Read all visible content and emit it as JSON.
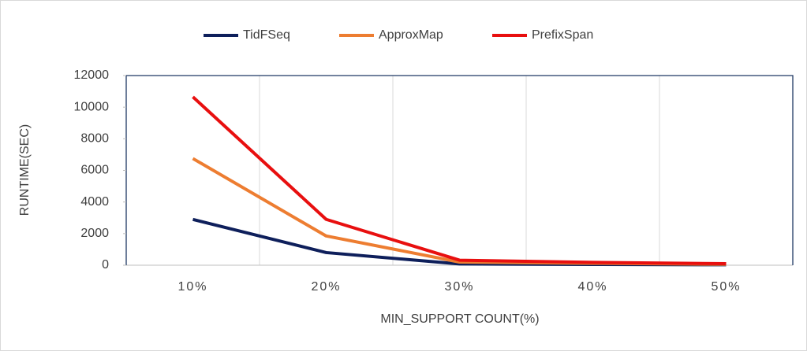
{
  "chart_data": {
    "type": "line",
    "x_label": "MIN_SUPPORT COUNT(%)",
    "y_label": "RUNTIME(SEC)",
    "categories": [
      "10%",
      "20%",
      "30%",
      "40%",
      "50%"
    ],
    "series": [
      {
        "name": "TidFSeq",
        "color": "#0e1f5b",
        "values": [
          2900,
          800,
          80,
          50,
          30
        ]
      },
      {
        "name": "ApproxMap",
        "color": "#ed7d31",
        "values": [
          6750,
          1850,
          200,
          120,
          60
        ]
      },
      {
        "name": "PrefixSpan",
        "color": "#e80f0f",
        "values": [
          10650,
          2900,
          320,
          180,
          100
        ]
      }
    ],
    "ylim": [
      0,
      12000
    ],
    "yticks": [
      0,
      2000,
      4000,
      6000,
      8000,
      10000,
      12000
    ],
    "grid": true,
    "legend": "top"
  }
}
